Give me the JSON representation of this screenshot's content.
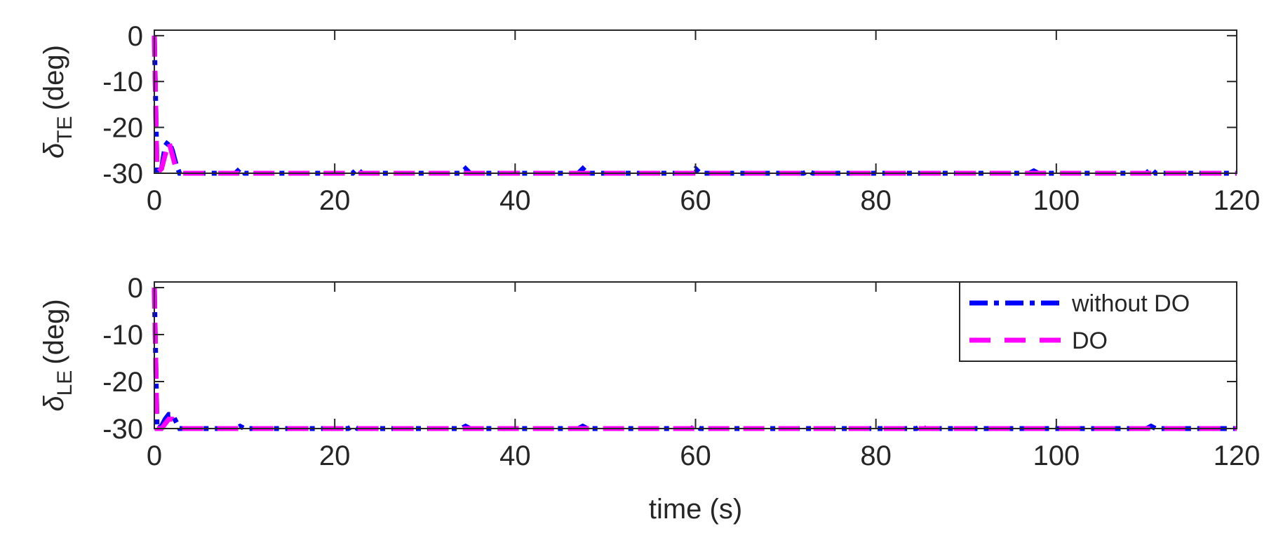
{
  "chart_data": [
    {
      "type": "line",
      "ylabel": {
        "symbol": "δ",
        "subscript": "TE",
        "unit": "(deg)"
      },
      "x": [
        0,
        0.3,
        0.8,
        1.2,
        1.6,
        2.0,
        2.4,
        2.8,
        3.5,
        9,
        9.5,
        10,
        22,
        22.5,
        23,
        34,
        34.5,
        35,
        47,
        47.5,
        48,
        59.5,
        60,
        60.5,
        72,
        72.5,
        73,
        97,
        97.5,
        98,
        110,
        110.5,
        111,
        120
      ],
      "series": [
        {
          "name": "without DO",
          "color": "#0000ff",
          "values": [
            0,
            -30,
            -29,
            -24,
            -23,
            -25,
            -28,
            -30,
            -30,
            -30,
            -29,
            -30,
            -30,
            -29,
            -30,
            -30,
            -29,
            -30,
            -30,
            -29,
            -30,
            -30,
            -29,
            -30,
            -30,
            -29.5,
            -30,
            -30,
            -29.5,
            -30,
            -30,
            -29,
            -30,
            -30
          ]
        },
        {
          "name": "DO",
          "color": "#ff00ff",
          "values": [
            0,
            -30,
            -29,
            -26,
            -23,
            -26,
            -29,
            -30,
            -30,
            -30,
            -30,
            -30,
            -30,
            -30,
            -30,
            -30,
            -30,
            -30,
            -30,
            -30,
            -30,
            -30,
            -30,
            -30,
            -30,
            -30,
            -30,
            -30,
            -30,
            -30,
            -30,
            -30,
            -30,
            -30
          ]
        }
      ],
      "xlim": [
        0,
        120
      ],
      "xticks": [
        0,
        20,
        40,
        60,
        80,
        100,
        120
      ],
      "ylim": [
        -30,
        1.2
      ],
      "yticks": [
        -30,
        -20,
        -10,
        0
      ]
    },
    {
      "type": "line",
      "ylabel": {
        "symbol": "δ",
        "subscript": "LE",
        "unit": "(deg)"
      },
      "xlabel": "time (s)",
      "x": [
        0,
        0.3,
        0.8,
        1.2,
        1.6,
        2.0,
        2.4,
        2.8,
        3.5,
        9,
        9.5,
        10,
        21.5,
        22,
        22.5,
        34,
        34.5,
        35,
        47,
        47.5,
        48,
        59.5,
        60,
        60.5,
        84.5,
        85,
        85.5,
        110,
        110.5,
        111,
        120
      ],
      "series": [
        {
          "name": "without DO",
          "color": "#0000ff",
          "values": [
            0,
            -30,
            -29.5,
            -28,
            -27,
            -27,
            -28.5,
            -30,
            -30,
            -30,
            -29.5,
            -30,
            -30,
            -29.5,
            -30,
            -30,
            -29.5,
            -30,
            -30,
            -29.5,
            -30,
            -30,
            -29.5,
            -30,
            -30,
            -29.5,
            -30,
            -30,
            -29.5,
            -30,
            -30
          ]
        },
        {
          "name": "DO",
          "color": "#ff00ff",
          "values": [
            0,
            -30,
            -30,
            -29,
            -28,
            -28,
            -29,
            -30,
            -30,
            -30,
            -30,
            -30,
            -30,
            -30,
            -30,
            -30,
            -30,
            -30,
            -30,
            -30,
            -30,
            -30,
            -30,
            -30,
            -30,
            -30,
            -30,
            -30,
            -30,
            -30,
            -30
          ]
        }
      ],
      "xlim": [
        0,
        120
      ],
      "xticks": [
        0,
        20,
        40,
        60,
        80,
        100,
        120
      ],
      "ylim": [
        -30,
        1.2
      ],
      "yticks": [
        -30,
        -20,
        -10,
        0
      ],
      "legend": "upper right"
    }
  ]
}
